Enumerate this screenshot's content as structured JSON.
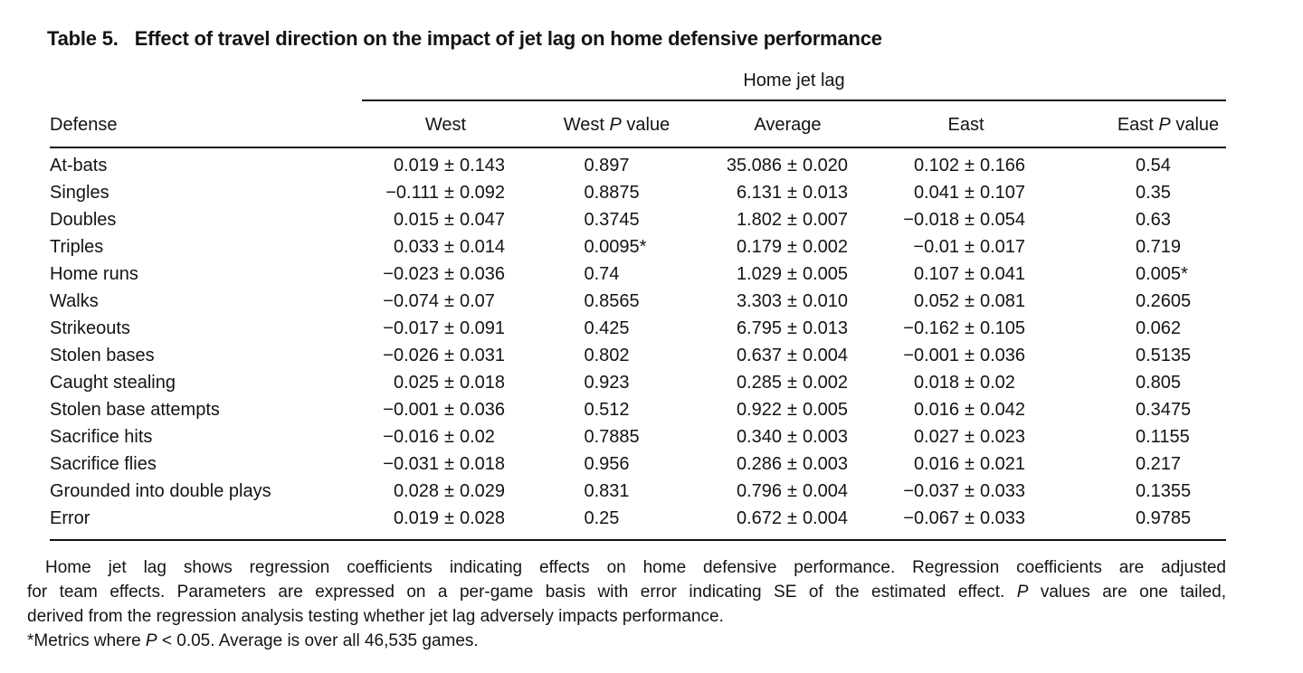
{
  "title": {
    "label": "Table 5.",
    "text": "Effect of travel direction on the impact of jet lag on home defensive performance"
  },
  "table": {
    "span_header": "Home jet lag",
    "pm": "±",
    "columns": [
      {
        "text": "Defense"
      },
      {
        "text": "West"
      },
      {
        "pre": "West ",
        "it": "P",
        "post": " value"
      },
      {
        "text": "Average"
      },
      {
        "text": "East"
      },
      {
        "pre": "East ",
        "it": "P",
        "post": " value"
      }
    ],
    "rows": [
      {
        "defense": "At-bats",
        "west": {
          "val": "0.019",
          "err": "0.143"
        },
        "west_p": "0.897",
        "avg": {
          "val": "35.086",
          "err": "0.020"
        },
        "east": {
          "val": "0.102",
          "err": "0.166"
        },
        "east_p": "0.54"
      },
      {
        "defense": "Singles",
        "west": {
          "val": "−0.111",
          "err": "0.092"
        },
        "west_p": "0.8875",
        "avg": {
          "val": "6.131",
          "err": "0.013"
        },
        "east": {
          "val": "0.041",
          "err": "0.107"
        },
        "east_p": "0.35"
      },
      {
        "defense": "Doubles",
        "west": {
          "val": "0.015",
          "err": "0.047"
        },
        "west_p": "0.3745",
        "avg": {
          "val": "1.802",
          "err": "0.007"
        },
        "east": {
          "val": "−0.018",
          "err": "0.054"
        },
        "east_p": "0.63"
      },
      {
        "defense": "Triples",
        "west": {
          "val": "0.033",
          "err": "0.014"
        },
        "west_p": "0.0095*",
        "avg": {
          "val": "0.179",
          "err": "0.002"
        },
        "east": {
          "val": "−0.01",
          "err": "0.017"
        },
        "east_p": "0.719"
      },
      {
        "defense": "Home runs",
        "west": {
          "val": "−0.023",
          "err": "0.036"
        },
        "west_p": "0.74",
        "avg": {
          "val": "1.029",
          "err": "0.005"
        },
        "east": {
          "val": "0.107",
          "err": "0.041"
        },
        "east_p": "0.005*"
      },
      {
        "defense": "Walks",
        "west": {
          "val": "−0.074",
          "err": "0.07"
        },
        "west_p": "0.8565",
        "avg": {
          "val": "3.303",
          "err": "0.010"
        },
        "east": {
          "val": "0.052",
          "err": "0.081"
        },
        "east_p": "0.2605"
      },
      {
        "defense": "Strikeouts",
        "west": {
          "val": "−0.017",
          "err": "0.091"
        },
        "west_p": "0.425",
        "avg": {
          "val": "6.795",
          "err": "0.013"
        },
        "east": {
          "val": "−0.162",
          "err": "0.105"
        },
        "east_p": "0.062"
      },
      {
        "defense": "Stolen bases",
        "west": {
          "val": "−0.026",
          "err": "0.031"
        },
        "west_p": "0.802",
        "avg": {
          "val": "0.637",
          "err": "0.004"
        },
        "east": {
          "val": "−0.001",
          "err": "0.036"
        },
        "east_p": "0.5135"
      },
      {
        "defense": "Caught stealing",
        "west": {
          "val": "0.025",
          "err": "0.018"
        },
        "west_p": "0.923",
        "avg": {
          "val": "0.285",
          "err": "0.002"
        },
        "east": {
          "val": "0.018",
          "err": "0.02"
        },
        "east_p": "0.805"
      },
      {
        "defense": "Stolen base attempts",
        "west": {
          "val": "−0.001",
          "err": "0.036"
        },
        "west_p": "0.512",
        "avg": {
          "val": "0.922",
          "err": "0.005"
        },
        "east": {
          "val": "0.016",
          "err": "0.042"
        },
        "east_p": "0.3475"
      },
      {
        "defense": "Sacrifice hits",
        "west": {
          "val": "−0.016",
          "err": "0.02"
        },
        "west_p": "0.7885",
        "avg": {
          "val": "0.340",
          "err": "0.003"
        },
        "east": {
          "val": "0.027",
          "err": "0.023"
        },
        "east_p": "0.1155"
      },
      {
        "defense": "Sacrifice flies",
        "west": {
          "val": "−0.031",
          "err": "0.018"
        },
        "west_p": "0.956",
        "avg": {
          "val": "0.286",
          "err": "0.003"
        },
        "east": {
          "val": "0.016",
          "err": "0.021"
        },
        "east_p": "0.217"
      },
      {
        "defense": "Grounded into double plays",
        "west": {
          "val": "0.028",
          "err": "0.029"
        },
        "west_p": "0.831",
        "avg": {
          "val": "0.796",
          "err": "0.004"
        },
        "east": {
          "val": "−0.037",
          "err": "0.033"
        },
        "east_p": "0.1355"
      },
      {
        "defense": "Error",
        "west": {
          "val": "0.019",
          "err": "0.028"
        },
        "west_p": "0.25",
        "avg": {
          "val": "0.672",
          "err": "0.004"
        },
        "east": {
          "val": "−0.067",
          "err": "0.033"
        },
        "east_p": "0.9785"
      }
    ]
  },
  "footnote": {
    "lines": [
      {
        "pre": "Home jet lag shows regression coefficients indicating effects on home defensive performance. Regression coefficients are adjusted",
        "it": "",
        "post": ""
      },
      {
        "pre": "for team effects. Parameters are expressed on a per-game basis with error indicating SE of the estimated effect. ",
        "it": "P",
        "post": " values are one tailed,"
      },
      {
        "pre": "derived from the regression analysis testing whether jet lag adversely impacts performance.",
        "it": "",
        "post": ""
      },
      {
        "pre": "*Metrics where ",
        "it": "P",
        "post": " < 0.05. Average is over all 46,535 games."
      }
    ]
  }
}
